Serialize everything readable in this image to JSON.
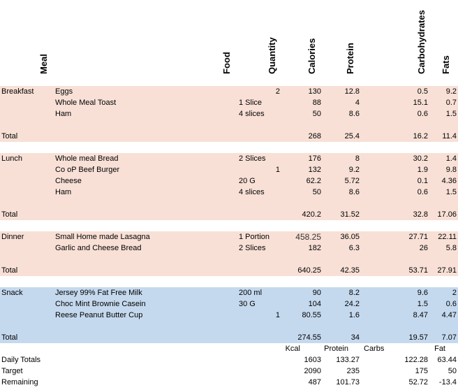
{
  "headers": {
    "meal": "Meal",
    "food": "Food",
    "quantity": "Quantity",
    "calories": "Calories",
    "protein": "Protein",
    "carbohydrates": "Carbohydrates",
    "fats": "Fats"
  },
  "breakfast": {
    "label": "Breakfast",
    "rows": [
      {
        "food": "Eggs",
        "qty": "",
        "num": "2",
        "cal": "130",
        "pro": "12.8",
        "carb": "0.5",
        "fat": "9.2"
      },
      {
        "food": "Whole Meal Toast",
        "qty": "1 Slice",
        "num": "",
        "cal": "88",
        "pro": "4",
        "carb": "15.1",
        "fat": "0.7"
      },
      {
        "food": "Ham",
        "qty": "4 slices",
        "num": "",
        "cal": "50",
        "pro": "8.6",
        "carb": "0.6",
        "fat": "1.5"
      }
    ],
    "total": {
      "label": "Total",
      "cal": "268",
      "pro": "25.4",
      "carb": "16.2",
      "fat": "11.4"
    }
  },
  "lunch": {
    "label": "Lunch",
    "rows": [
      {
        "food": "Whole meal Bread",
        "qty": "2 Slices",
        "num": "",
        "cal": "176",
        "pro": "8",
        "carb": "30.2",
        "fat": "1.4"
      },
      {
        "food": "Co oP Beef Burger",
        "qty": "",
        "num": "1",
        "cal": "132",
        "pro": "9.2",
        "carb": "1.9",
        "fat": "9.8"
      },
      {
        "food": "Cheese",
        "qty": "20 G",
        "num": "",
        "cal": "62.2",
        "pro": "5.72",
        "carb": "0.1",
        "fat": "4.36"
      },
      {
        "food": "Ham",
        "qty": "4 slices",
        "num": "",
        "cal": "50",
        "pro": "8.6",
        "carb": "0.6",
        "fat": "1.5"
      }
    ],
    "total": {
      "label": "Total",
      "cal": "420.2",
      "pro": "31.52",
      "carb": "32.8",
      "fat": "17.06"
    }
  },
  "dinner": {
    "label": "Dinner",
    "rows": [
      {
        "food": "Small Home made Lasagna",
        "qty": "1 Portion",
        "num": "",
        "cal": "458.25",
        "pro": "36.05",
        "carb": "27.71",
        "fat": "22.11"
      },
      {
        "food": "Garlic and Cheese Bread",
        "qty": "2 Slices",
        "num": "",
        "cal": "182",
        "pro": "6.3",
        "carb": "26",
        "fat": "5.8"
      }
    ],
    "total": {
      "label": "Total",
      "cal": "640.25",
      "pro": "42.35",
      "carb": "53.71",
      "fat": "27.91"
    }
  },
  "snack": {
    "label": "Snack",
    "rows": [
      {
        "food": "Jersey 99% Fat Free Milk",
        "qty": "200 ml",
        "num": "",
        "cal": "90",
        "pro": "8.2",
        "carb": "9.6",
        "fat": "2"
      },
      {
        "food": "Choc Mint Brownie Casein",
        "qty": "30 G",
        "num": "",
        "cal": "104",
        "pro": "24.2",
        "carb": "1.5",
        "fat": "0.6"
      },
      {
        "food": "Reese Peanut Butter Cup",
        "qty": "",
        "num": "1",
        "cal": "80.55",
        "pro": "1.6",
        "carb": "8.47",
        "fat": "4.47"
      }
    ],
    "total": {
      "label": "Total",
      "cal": "274.55",
      "pro": "34",
      "carb": "19.57",
      "fat": "7.07"
    }
  },
  "summary": {
    "units": {
      "kcal": "Kcal",
      "protein": "Protein",
      "carbs": "Carbs",
      "fat": "Fat"
    },
    "daily": {
      "label": "Daily Totals",
      "cal": "1603",
      "pro": "133.27",
      "carb": "122.28",
      "fat": "63.44"
    },
    "target": {
      "label": "Target",
      "cal": "2090",
      "pro": "235",
      "carb": "175",
      "fat": "50"
    },
    "remaining": {
      "label": "Remaining",
      "cal": "487",
      "pro": "101.73",
      "carb": "52.72",
      "fat": "-13.4"
    }
  }
}
